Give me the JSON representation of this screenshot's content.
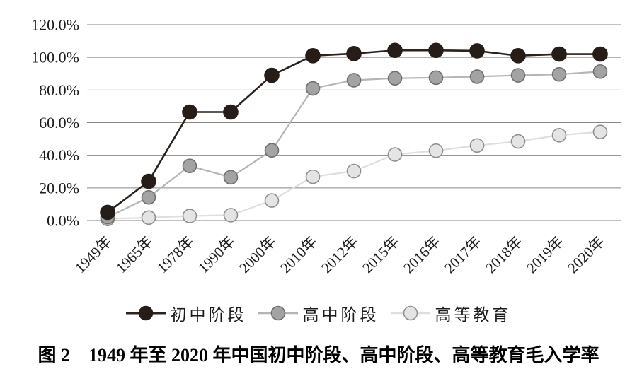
{
  "figure": {
    "caption": "图 2　1949 年至 2020 年中国初中阶段、高中阶段、高等教育毛入学率"
  },
  "chart_data": {
    "type": "line",
    "title": "1949年至2020年中国初中阶段、高中阶段、高等教育毛入学率",
    "categories": [
      "1949年",
      "1965年",
      "1978年",
      "1990年",
      "2000年",
      "2010年",
      "2012年",
      "2015年",
      "2016年",
      "2017年",
      "2018年",
      "2019年",
      "2020年"
    ],
    "series": [
      {
        "name": "初中阶段",
        "values": [
          5.0,
          24.0,
          66.5,
          66.5,
          89.0,
          101.0,
          102.3,
          104.3,
          104.3,
          104.0,
          101.0,
          102.0,
          102.0
        ],
        "line_color": "#2b211d",
        "marker_fill": "#261c18",
        "marker_stroke": "#261c18",
        "line_width": 2.6
      },
      {
        "name": "高中阶段",
        "values": [
          2.0,
          14.2,
          33.5,
          26.5,
          43.0,
          81.0,
          86.0,
          87.2,
          87.6,
          88.2,
          89.0,
          89.6,
          91.3
        ],
        "line_color": "#b5b5b5",
        "marker_fill": "#a3a3a3",
        "marker_stroke": "#707070",
        "line_width": 2.2
      },
      {
        "name": "高等教育",
        "values": [
          1.0,
          1.8,
          2.8,
          3.3,
          12.3,
          26.8,
          30.3,
          40.5,
          42.8,
          46.0,
          48.5,
          52.3,
          54.3
        ],
        "line_color": "#dedede",
        "marker_fill": "#e4e4e4",
        "marker_stroke": "#8f8f8f",
        "line_width": 2.2
      }
    ],
    "ylim": [
      0,
      120
    ],
    "yticks": [
      {
        "value": 0,
        "label": "0.0%"
      },
      {
        "value": 20,
        "label": "20.0%"
      },
      {
        "value": 40,
        "label": "40.0%"
      },
      {
        "value": 60,
        "label": "60.0%"
      },
      {
        "value": 80,
        "label": "80.0%"
      },
      {
        "value": 100,
        "label": "100.0%"
      },
      {
        "value": 120,
        "label": "120.0%"
      }
    ],
    "grid": true,
    "gridline_color": "#8a8683",
    "tick_label_color": "#1b1b1b",
    "legend_position": "bottom",
    "x_label_rotation": -45
  }
}
